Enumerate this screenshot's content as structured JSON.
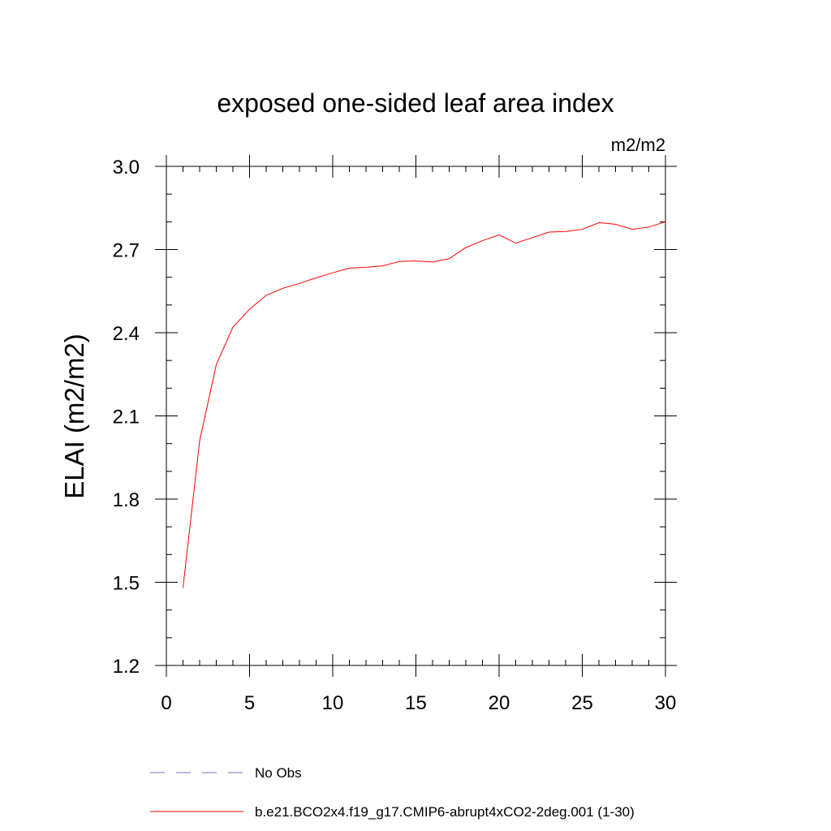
{
  "chart_data": {
    "type": "line",
    "title": "exposed one-sided leaf area index",
    "units_label": "m2/m2",
    "ylabel": "ELAI  (m2/m2)",
    "xlabel": "",
    "xlim": [
      0,
      30
    ],
    "ylim": [
      1.2,
      3.0
    ],
    "x_ticks": [
      0,
      5,
      10,
      15,
      20,
      25,
      30
    ],
    "x_tick_labels": [
      "0",
      "5",
      "10",
      "15",
      "20",
      "25",
      "30"
    ],
    "x_minor_step": 1,
    "y_ticks": [
      1.2,
      1.5,
      1.8,
      2.1,
      2.4,
      2.7,
      3.0
    ],
    "y_tick_labels": [
      "1.2",
      "1.5",
      "1.8",
      "2.1",
      "2.4",
      "2.7",
      "3.0"
    ],
    "y_minor_step": 0.1,
    "grid": false,
    "legend_position": "bottom",
    "series": [
      {
        "name": "No Obs",
        "color": "#7b6fc0",
        "style": "dashed",
        "x": [],
        "y": []
      },
      {
        "name": "b.e21.BCO2x4.f19_g17.CMIP6-abrupt4xCO2-2deg.001 (1-30)",
        "color": "#ff0000",
        "style": "solid",
        "x": [
          1,
          2,
          3,
          4,
          5,
          6,
          7,
          8,
          9,
          10,
          11,
          12,
          13,
          14,
          15,
          16,
          17,
          18,
          19,
          20,
          21,
          22,
          23,
          24,
          25,
          26,
          27,
          28,
          29,
          30
        ],
        "y": [
          1.48,
          2.01,
          2.285,
          2.42,
          2.485,
          2.535,
          2.56,
          2.578,
          2.598,
          2.616,
          2.633,
          2.636,
          2.641,
          2.657,
          2.659,
          2.655,
          2.667,
          2.707,
          2.732,
          2.753,
          2.723,
          2.743,
          2.763,
          2.765,
          2.773,
          2.797,
          2.791,
          2.773,
          2.781,
          2.8
        ]
      }
    ]
  }
}
